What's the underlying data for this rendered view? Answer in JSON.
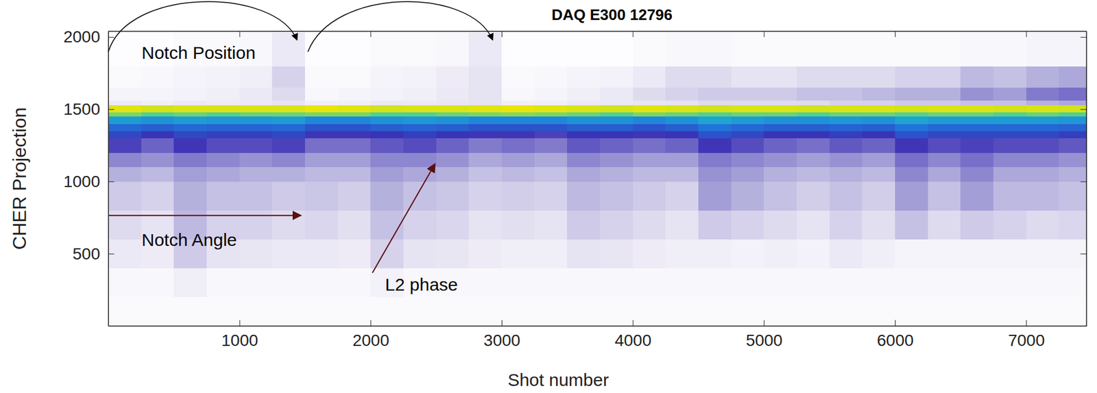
{
  "chart_data": {
    "type": "heatmap",
    "title": "DAQ E300 12796",
    "x_label": "Shot number",
    "y_label": "CHER Projection",
    "xlim": [
      0,
      7460
    ],
    "ylim": [
      0,
      2040
    ],
    "xticks": [
      1000,
      2000,
      3000,
      4000,
      5000,
      6000,
      7000
    ],
    "yticks": [
      500,
      1000,
      1500,
      2000
    ],
    "grid": false,
    "x_bins": [
      0,
      250,
      500,
      750,
      1000,
      1250,
      1500,
      1750,
      2000,
      2250,
      2500,
      2750,
      3000,
      3250,
      3500,
      3750,
      4000,
      4250,
      4500,
      4750,
      5000,
      5250,
      5500,
      5750,
      6000,
      6250,
      6500,
      6750,
      7000,
      7250,
      7460
    ],
    "y_bins": [
      0,
      200,
      400,
      600,
      800,
      1000,
      1100,
      1200,
      1300,
      1350,
      1400,
      1450,
      1480,
      1530,
      1560,
      1650,
      1800,
      2040
    ],
    "colorscale": [
      [
        0,
        "#ffffff"
      ],
      [
        10,
        "#e6e3f2"
      ],
      [
        25,
        "#a9a4d8"
      ],
      [
        45,
        "#3a2fb5"
      ],
      [
        60,
        "#1d7de0"
      ],
      [
        75,
        "#22c7c0"
      ],
      [
        90,
        "#b5e02a"
      ],
      [
        100,
        "#ffe600"
      ]
    ],
    "z": [
      [
        2,
        2,
        2,
        2,
        2,
        2,
        2,
        2,
        2,
        2,
        2,
        2,
        2,
        2,
        2,
        2,
        2,
        2,
        2,
        2,
        2,
        2,
        2,
        2,
        2,
        2,
        2,
        2,
        2,
        2
      ],
      [
        3,
        3,
        6,
        3,
        3,
        3,
        3,
        3,
        5,
        3,
        3,
        3,
        3,
        3,
        3,
        3,
        3,
        3,
        3,
        3,
        3,
        3,
        3,
        3,
        3,
        3,
        3,
        3,
        3,
        3
      ],
      [
        8,
        7,
        16,
        10,
        9,
        8,
        8,
        7,
        14,
        10,
        9,
        7,
        6,
        6,
        10,
        9,
        7,
        6,
        6,
        5,
        6,
        5,
        8,
        6,
        4,
        4,
        4,
        4,
        4,
        4
      ],
      [
        12,
        10,
        20,
        14,
        14,
        12,
        13,
        11,
        18,
        14,
        13,
        10,
        11,
        10,
        16,
        14,
        12,
        10,
        16,
        14,
        12,
        10,
        14,
        11,
        18,
        12,
        16,
        14,
        12,
        13
      ],
      [
        16,
        14,
        22,
        18,
        18,
        16,
        17,
        15,
        22,
        18,
        17,
        14,
        15,
        14,
        20,
        18,
        16,
        14,
        26,
        22,
        18,
        15,
        18,
        15,
        26,
        18,
        26,
        20,
        20,
        18
      ],
      [
        22,
        20,
        26,
        24,
        22,
        22,
        20,
        20,
        26,
        24,
        22,
        18,
        20,
        18,
        24,
        22,
        20,
        20,
        28,
        26,
        22,
        20,
        22,
        20,
        30,
        24,
        30,
        24,
        24,
        22
      ],
      [
        30,
        28,
        32,
        30,
        28,
        30,
        26,
        26,
        30,
        30,
        28,
        24,
        26,
        24,
        30,
        28,
        26,
        26,
        32,
        30,
        28,
        26,
        28,
        26,
        34,
        30,
        34,
        30,
        30,
        28
      ],
      [
        42,
        36,
        44,
        40,
        40,
        42,
        34,
        34,
        38,
        40,
        36,
        32,
        34,
        32,
        38,
        36,
        34,
        36,
        44,
        40,
        36,
        34,
        38,
        36,
        44,
        40,
        42,
        40,
        40,
        38
      ],
      [
        50,
        46,
        50,
        48,
        48,
        50,
        44,
        44,
        46,
        48,
        46,
        44,
        44,
        42,
        46,
        46,
        44,
        46,
        52,
        50,
        46,
        46,
        48,
        46,
        52,
        50,
        50,
        50,
        50,
        48
      ],
      [
        56,
        54,
        56,
        55,
        55,
        56,
        52,
        52,
        54,
        55,
        54,
        52,
        52,
        52,
        54,
        54,
        52,
        54,
        58,
        56,
        54,
        54,
        55,
        54,
        58,
        56,
        56,
        56,
        56,
        55
      ],
      [
        66,
        64,
        66,
        65,
        65,
        66,
        62,
        62,
        64,
        65,
        64,
        62,
        62,
        62,
        64,
        64,
        62,
        64,
        68,
        66,
        64,
        64,
        65,
        64,
        68,
        66,
        66,
        66,
        66,
        65
      ],
      [
        84,
        80,
        82,
        80,
        82,
        82,
        84,
        84,
        80,
        80,
        82,
        84,
        85,
        84,
        82,
        80,
        84,
        82,
        80,
        82,
        82,
        80,
        82,
        82,
        80,
        82,
        82,
        80,
        82,
        80
      ],
      [
        96,
        94,
        95,
        95,
        95,
        95,
        97,
        96,
        94,
        95,
        95,
        96,
        97,
        96,
        95,
        94,
        96,
        95,
        94,
        95,
        95,
        94,
        95,
        95,
        94,
        95,
        95,
        94,
        95,
        94
      ],
      [
        8,
        6,
        8,
        7,
        8,
        10,
        6,
        6,
        8,
        8,
        9,
        10,
        6,
        6,
        8,
        8,
        9,
        10,
        12,
        12,
        12,
        12,
        14,
        14,
        16,
        16,
        18,
        18,
        22,
        24
      ],
      [
        4,
        4,
        5,
        6,
        8,
        12,
        3,
        4,
        5,
        6,
        8,
        10,
        3,
        4,
        6,
        8,
        12,
        14,
        16,
        16,
        16,
        18,
        18,
        20,
        22,
        22,
        28,
        26,
        32,
        34
      ],
      [
        2,
        3,
        4,
        5,
        6,
        14,
        2,
        2,
        4,
        5,
        7,
        10,
        2,
        3,
        4,
        5,
        8,
        12,
        12,
        10,
        10,
        12,
        12,
        12,
        14,
        14,
        20,
        18,
        22,
        24
      ],
      [
        1,
        1,
        2,
        2,
        3,
        8,
        1,
        1,
        2,
        2,
        3,
        8,
        1,
        1,
        1,
        1,
        2,
        3,
        3,
        2,
        2,
        2,
        2,
        2,
        2,
        2,
        3,
        3,
        4,
        4
      ]
    ],
    "annotations": [
      {
        "text": "Notch Position"
      },
      {
        "text": "Notch Angle"
      },
      {
        "text": "L2 phase"
      }
    ]
  }
}
